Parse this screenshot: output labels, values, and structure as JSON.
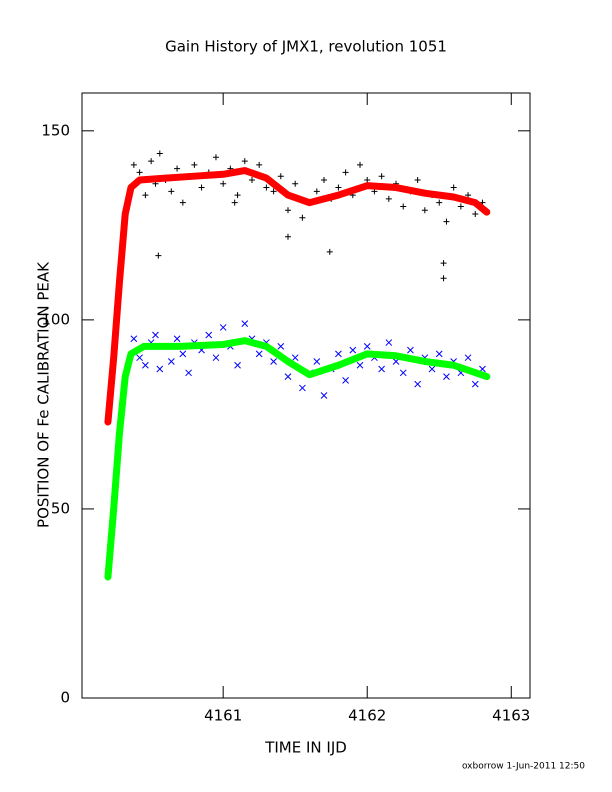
{
  "chart_data": {
    "type": "scatter",
    "title": "Gain History of JMX1, revolution 1051",
    "xlabel": "TIME IN IJD",
    "ylabel": "POSITION OF Fe CALIBRATION PEAK",
    "footer": "oxborrow  1-Jun-2011 12:50",
    "xlim": [
      4160.02,
      4163.13
    ],
    "ylim": [
      0,
      160
    ],
    "xticks": [
      4161,
      4162,
      4163
    ],
    "yticks": [
      0,
      50,
      100,
      150
    ],
    "series": [
      {
        "marker": "+",
        "color": "#000000",
        "x": [
          4160.38,
          4160.42,
          4160.46,
          4160.5,
          4160.53,
          4160.56,
          4160.6,
          4160.64,
          4160.68,
          4160.72,
          4160.76,
          4160.8,
          4160.85,
          4160.9,
          4160.95,
          4161.0,
          4161.05,
          4161.1,
          4161.15,
          4161.2,
          4161.25,
          4161.3,
          4161.35,
          4161.4,
          4161.45,
          4161.5,
          4161.55,
          4161.6,
          4161.65,
          4161.7,
          4161.75,
          4161.8,
          4161.85,
          4161.9,
          4161.95,
          4162.0,
          4162.05,
          4162.1,
          4162.15,
          4162.2,
          4162.25,
          4162.3,
          4162.35,
          4162.4,
          4162.45,
          4162.5,
          4162.55,
          4162.6,
          4162.65,
          4162.7,
          4162.75,
          4162.8,
          4160.55,
          4161.08,
          4161.45,
          4161.74,
          4162.53,
          4162.53
        ],
        "values": [
          141,
          139,
          133,
          142,
          136,
          144,
          137,
          134,
          140,
          131,
          138,
          141,
          135,
          139,
          143,
          136,
          140,
          133,
          142,
          137,
          141,
          135,
          134,
          138,
          129,
          136,
          127,
          131,
          134,
          137,
          132,
          135,
          139,
          133,
          141,
          137,
          134,
          138,
          132,
          136,
          130,
          134,
          137,
          129,
          133,
          131,
          126,
          135,
          130,
          133,
          128,
          131,
          117,
          131,
          122,
          118,
          115,
          111
        ]
      },
      {
        "marker": "line",
        "color": "#ff0000",
        "x": [
          4160.2,
          4160.24,
          4160.28,
          4160.32,
          4160.36,
          4160.42,
          4160.6,
          4160.8,
          4161.0,
          4161.15,
          4161.3,
          4161.45,
          4161.6,
          4161.8,
          4162.0,
          4162.2,
          4162.4,
          4162.6,
          4162.75,
          4162.83
        ],
        "values": [
          73,
          90,
          110,
          128,
          135,
          137,
          137.5,
          138,
          138.5,
          139.5,
          137.5,
          133,
          131,
          133,
          135.5,
          135,
          133.5,
          132.5,
          131,
          128.5
        ]
      },
      {
        "marker": "x",
        "color": "#0000ff",
        "x": [
          4160.38,
          4160.42,
          4160.46,
          4160.5,
          4160.53,
          4160.56,
          4160.6,
          4160.64,
          4160.68,
          4160.72,
          4160.76,
          4160.8,
          4160.85,
          4160.9,
          4160.95,
          4161.0,
          4161.05,
          4161.1,
          4161.15,
          4161.2,
          4161.25,
          4161.3,
          4161.35,
          4161.4,
          4161.45,
          4161.5,
          4161.55,
          4161.6,
          4161.65,
          4161.7,
          4161.75,
          4161.8,
          4161.85,
          4161.9,
          4161.95,
          4162.0,
          4162.05,
          4162.1,
          4162.15,
          4162.2,
          4162.25,
          4162.3,
          4162.35,
          4162.4,
          4162.45,
          4162.5,
          4162.55,
          4162.6,
          4162.65,
          4162.7,
          4162.75,
          4162.8
        ],
        "values": [
          95,
          90,
          88,
          94,
          96,
          87,
          93,
          89,
          95,
          91,
          86,
          94,
          92,
          96,
          90,
          98,
          93,
          88,
          99,
          95,
          91,
          94,
          89,
          93,
          85,
          90,
          82,
          86,
          89,
          80,
          87,
          91,
          84,
          92,
          88,
          93,
          90,
          87,
          94,
          89,
          86,
          92,
          83,
          90,
          87,
          91,
          85,
          89,
          86,
          90,
          83,
          87
        ]
      },
      {
        "marker": "line",
        "color": "#00ff00",
        "x": [
          4160.2,
          4160.24,
          4160.28,
          4160.32,
          4160.36,
          4160.45,
          4160.7,
          4161.0,
          4161.15,
          4161.3,
          4161.45,
          4161.6,
          4161.8,
          4162.0,
          4162.2,
          4162.4,
          4162.6,
          4162.83
        ],
        "values": [
          32,
          50,
          70,
          85,
          91,
          93,
          93,
          93.5,
          94.5,
          93,
          89,
          85.5,
          88,
          91,
          90.5,
          89,
          88,
          85
        ]
      }
    ]
  }
}
